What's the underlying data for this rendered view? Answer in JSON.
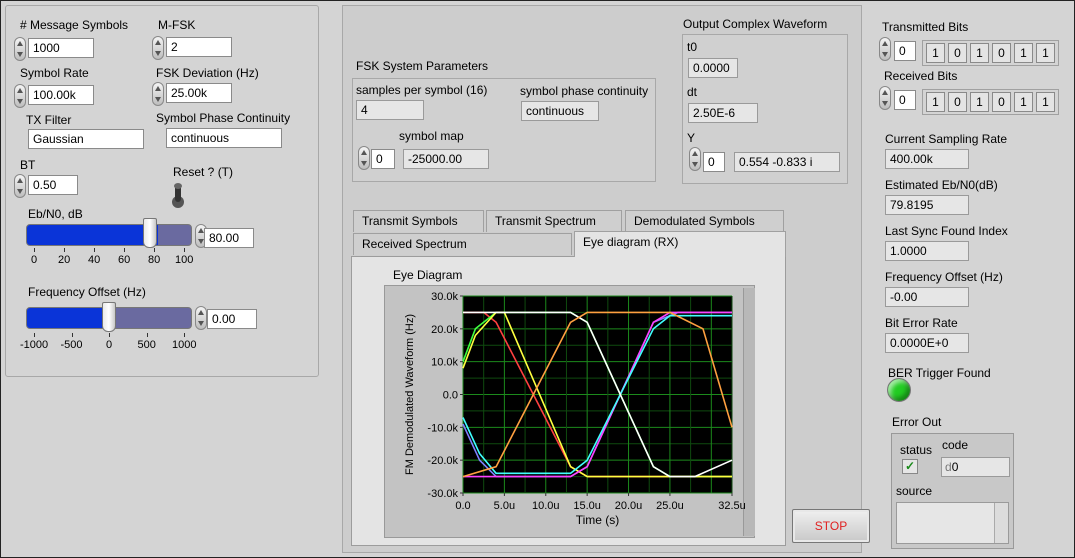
{
  "left_panel": {
    "message_symbols": {
      "label": "# Message Symbols",
      "value": "1000"
    },
    "m_fsk": {
      "label": "M-FSK",
      "value": "2"
    },
    "symbol_rate": {
      "label": "Symbol Rate",
      "value": "100.00k"
    },
    "fsk_deviation": {
      "label": "FSK Deviation (Hz)",
      "value": "25.00k"
    },
    "tx_filter": {
      "label": "TX Filter",
      "value": "Gaussian"
    },
    "symbol_phase_continuity": {
      "label": "Symbol Phase Continuity",
      "value": "continuous"
    },
    "bt": {
      "label": "BT",
      "value": "0.50"
    },
    "reset": {
      "label": "Reset ? (T)"
    },
    "ebn0": {
      "label": "Eb/N0, dB",
      "value": "80.00",
      "level": 0.8,
      "ticks": [
        "0",
        "20",
        "40",
        "60",
        "80",
        "100"
      ]
    },
    "freq_offset": {
      "label": "Frequency Offset (Hz)",
      "value": "0.00",
      "level": 0.5,
      "ticks": [
        "-1000",
        "-500",
        "0",
        "500",
        "1000"
      ]
    }
  },
  "fsk_params": {
    "title": "FSK System Parameters",
    "samples_label": "samples per symbol (16)",
    "samples_value": "4",
    "phase_label": "symbol phase continuity",
    "phase_value": "continuous",
    "symbol_map_label": "symbol map",
    "symbol_map_index": "0",
    "symbol_map_value": "-25000.00"
  },
  "output_waveform": {
    "title": "Output Complex Waveform",
    "t0_label": "t0",
    "t0_value": "0.0000",
    "dt_label": "dt",
    "dt_value": "2.50E-6",
    "y_label": "Y",
    "y_index": "0",
    "y_value": "0.554 -0.833 i"
  },
  "tabs": {
    "transmit_symbols": "Transmit Symbols",
    "transmit_spectrum": "Transmit Spectrum",
    "demodulated_symbols": "Demodulated Symbols",
    "received_spectrum": "Received Spectrum",
    "eye_diagram": "Eye diagram (RX)"
  },
  "right_panel": {
    "transmitted_bits": {
      "label": "Transmitted  Bits",
      "index": "0",
      "bits": [
        "1",
        "0",
        "1",
        "0",
        "1",
        "1"
      ]
    },
    "received_bits": {
      "label": "Received Bits",
      "index": "0",
      "bits": [
        "1",
        "0",
        "1",
        "0",
        "1",
        "1"
      ]
    },
    "sampling_rate": {
      "label": "Current Sampling Rate",
      "value": "400.00k"
    },
    "ebn0_est": {
      "label": "Estimated Eb/N0(dB)",
      "value": "79.8195"
    },
    "sync_index": {
      "label": "Last Sync Found Index",
      "value": "1.0000"
    },
    "freq_offset": {
      "label": "Frequency Offset (Hz)",
      "value": "-0.00"
    },
    "ber": {
      "label": "Bit Error Rate",
      "value": "0.0000E+0"
    },
    "ber_trigger": {
      "label": "BER Trigger Found",
      "color": "#22cc22"
    },
    "error_out": {
      "title": "Error Out",
      "status_label": "status",
      "code_label": "code",
      "code_value": "0",
      "code_prefix": "d",
      "source_label": "source"
    }
  },
  "stop_button": {
    "label": "STOP",
    "color": "#e02020"
  },
  "chart_data": {
    "type": "line",
    "title": "Eye Diagram",
    "xlabel": "Time (s)",
    "ylabel": "FM Demodulated Waveform (Hz)",
    "xlim": [
      0,
      3.25e-05
    ],
    "ylim": [
      -30000,
      30000
    ],
    "xticks": [
      "0.0",
      "5.0u",
      "10.0u",
      "15.0u",
      "20.0u",
      "25.0u",
      "32.5u"
    ],
    "xtick_values": [
      0,
      5e-06,
      1e-05,
      1.5e-05,
      2e-05,
      2.5e-05,
      3.25e-05
    ],
    "yticks": [
      "30.0k",
      "20.0k",
      "10.0k",
      "0.0",
      "-10.0k",
      "-20.0k",
      "-30.0k"
    ],
    "ytick_values": [
      30000,
      20000,
      10000,
      0,
      -10000,
      -20000,
      -30000
    ],
    "grid": true,
    "series": [
      {
        "color": "#ff4040",
        "x": [
          0,
          2.5e-06,
          4e-06,
          1.3e-05,
          1.5e-05,
          2.3e-05,
          2.5e-05,
          3.25e-05
        ],
        "y": [
          25000,
          25000,
          22000,
          -22000,
          -25000,
          -25000,
          -25000,
          -25000
        ]
      },
      {
        "color": "#40ff40",
        "x": [
          0,
          1.5e-06,
          4e-06,
          1.3e-05,
          1.5e-05,
          2.3e-05,
          2.5e-05,
          3.25e-05
        ],
        "y": [
          10000,
          20000,
          25000,
          25000,
          22000,
          -22000,
          -25000,
          -25000
        ]
      },
      {
        "color": "#8080ff",
        "x": [
          0,
          2e-06,
          4e-06,
          1.3e-05,
          1.5e-05,
          2.3e-05,
          2.6e-05,
          3.25e-05
        ],
        "y": [
          -9000,
          -20000,
          -25000,
          -25000,
          -22000,
          22000,
          25000,
          25000
        ]
      },
      {
        "color": "#ffff40",
        "x": [
          0,
          1.5e-06,
          4e-06,
          5e-06,
          1.3e-05,
          1.5e-05,
          2.3e-05,
          3.25e-05
        ],
        "y": [
          8000,
          18000,
          25000,
          25000,
          -22000,
          -25000,
          -25000,
          -25000
        ]
      },
      {
        "color": "#ff40ff",
        "x": [
          0,
          4e-06,
          1.3e-05,
          1.5e-05,
          2.3e-05,
          2.5e-05,
          2.8e-05,
          3.25e-05
        ],
        "y": [
          -25000,
          -25000,
          -25000,
          -22000,
          22000,
          25000,
          25000,
          25000
        ]
      },
      {
        "color": "#40ffff",
        "x": [
          0,
          2e-06,
          4e-06,
          1.3e-05,
          1.5e-05,
          2.3e-05,
          2.5e-05,
          3.25e-05
        ],
        "y": [
          -7000,
          -18000,
          -24000,
          -24000,
          -20000,
          20000,
          24000,
          24000
        ]
      },
      {
        "color": "#ffffff",
        "x": [
          0,
          4e-06,
          1.3e-05,
          1.5e-05,
          2.3e-05,
          2.5e-05,
          2.8e-05,
          3.25e-05
        ],
        "y": [
          25000,
          25000,
          25000,
          22000,
          -22000,
          -25000,
          -25000,
          -20000
        ]
      },
      {
        "color": "#ffa040",
        "x": [
          0,
          4e-06,
          1.3e-05,
          1.5e-05,
          2.3e-05,
          2.5e-05,
          2.9e-05,
          3.25e-05
        ],
        "y": [
          -25000,
          -22000,
          22000,
          25000,
          25000,
          25000,
          20000,
          -10000
        ]
      }
    ]
  }
}
